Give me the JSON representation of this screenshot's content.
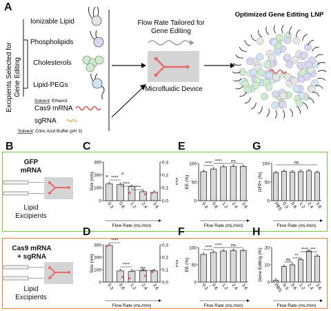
{
  "panels": {
    "A": "A",
    "B": "B",
    "C": "C",
    "D": "D",
    "E": "E",
    "F": "F",
    "G": "G",
    "H": "H"
  },
  "sectionA": {
    "side_label_1": "Excipients Selected for",
    "side_label_2": "Gene Editing",
    "excipients": [
      "Ionizable Lipid",
      "Phospholipids",
      "Cholesterols",
      "Lipid-PEGs"
    ],
    "solvent_ethanol_prefix": "Solvent",
    "solvent_ethanol": ": Ethanol",
    "rna": [
      "Cas9 mRNA",
      "sgRNA"
    ],
    "solvent_buffer_prefix": "Solvent",
    "solvent_buffer": ": Citric Acid Buffer (pH 3)",
    "flow_title_1": "Flow Rate Tailored for",
    "flow_title_2": "Gene Editing",
    "device_label": "Microfluidic Device",
    "lnp_title": "Optimized Gene Editing LNP"
  },
  "colors": {
    "green_border": "#7ac143",
    "orange_border": "#e8803a",
    "bar_fill": "#d9d9d9",
    "pdi_points": "#e8556d",
    "device_fill": "#d4d4d4",
    "channel": "#e86a6a"
  },
  "rowB": {
    "title_1": "GFP",
    "title_2": "mRNA",
    "sub_1": "Lipid",
    "sub_2": "Excipients"
  },
  "rowD": {
    "title_1": "Cas9 mRNA",
    "title_2": "+ sgRNA",
    "sub_1": "Lipid",
    "sub_2": "Excipients"
  },
  "chart_data": [
    {
      "panel": "C",
      "type": "bar",
      "categories": [
        "0.3",
        "0.6",
        "1.2",
        "2.4",
        "3.6"
      ],
      "series": [
        {
          "name": "Size (nm)",
          "values": [
            130,
            125,
            110,
            70,
            65
          ],
          "axis": "left"
        },
        {
          "name": "PDI",
          "type": "scatter",
          "values": [
            0.19,
            0.21,
            0.06,
            0.05,
            0.06
          ],
          "axis": "right"
        }
      ],
      "ylabel": "Size (nm)",
      "y2label": "PDI",
      "xlabel": "Flow Rate (mL/min)",
      "ylim": [
        0,
        300
      ],
      "y2lim": [
        0,
        0.3
      ],
      "yticks": [
        "0",
        "100",
        "200",
        "300"
      ],
      "y2ticks": [
        "0.0",
        "0.1",
        "0.2",
        "0.3"
      ],
      "annotations": [
        "****",
        "****",
        "****"
      ]
    },
    {
      "panel": "D",
      "type": "bar",
      "categories": [
        "0.3",
        "0.6",
        "1.2",
        "2.4",
        "3.6"
      ],
      "series": [
        {
          "name": "Size (nm)",
          "values": [
            295,
            90,
            85,
            90,
            90
          ],
          "axis": "left"
        },
        {
          "name": "PDI",
          "type": "scatter",
          "values": [
            0.29,
            0.04,
            0.03,
            0.05,
            0.08
          ],
          "axis": "right"
        }
      ],
      "ylabel": "Size (nm)",
      "y2label": "PDI",
      "xlabel": "Flow Rate (mL/min)",
      "ylim": [
        0,
        300
      ],
      "y2lim": [
        0,
        0.3
      ],
      "yticks": [
        "0",
        "100",
        "200",
        "300"
      ],
      "y2ticks": [
        "0.0",
        "0.1",
        "0.2",
        "0.3"
      ],
      "annotations": [
        "****",
        "****",
        "ns"
      ]
    },
    {
      "panel": "E",
      "type": "bar",
      "categories": [
        "0.3",
        "0.6",
        "1.2",
        "2.4",
        "3.6"
      ],
      "values": [
        78,
        85,
        91,
        92,
        92
      ],
      "ylabel": "EE (%)",
      "xlabel": "Flow Rate (mL/min)",
      "ylim": [
        0,
        100
      ],
      "yticks": [
        "0",
        "50",
        "100"
      ],
      "annotations": [
        "****",
        "****",
        "ns"
      ]
    },
    {
      "panel": "F",
      "type": "bar",
      "categories": [
        "0.3",
        "0.6",
        "1.2",
        "2.4",
        "3.6"
      ],
      "values": [
        80,
        86,
        90,
        91,
        91
      ],
      "ylabel": "EE (%)",
      "xlabel": "Flow Rate (mL/min)",
      "ylim": [
        0,
        100
      ],
      "yticks": [
        "0",
        "50",
        "100"
      ],
      "annotations": [
        "****",
        "****",
        "ns"
      ]
    },
    {
      "panel": "G",
      "type": "bar",
      "categories": [
        "PBS",
        "0.3",
        "0.6",
        "1.2",
        "2.4",
        "3.6"
      ],
      "values": [
        75,
        79,
        77,
        78,
        80,
        76
      ],
      "ylabel": "GFP+ (%)",
      "xlabel": "Flow Rate (mL/min)",
      "ylim": [
        0,
        100
      ],
      "yticks": [
        "0",
        "50",
        "100"
      ],
      "annotations": [
        "ns"
      ]
    },
    {
      "panel": "H",
      "type": "bar",
      "categories": [
        "PBS",
        "0.3",
        "0.6",
        "1.2",
        "2.4",
        "3.6"
      ],
      "values": [
        1,
        9,
        10,
        13,
        18,
        15
      ],
      "ylabel": "Gene Editing (%)",
      "xlabel": "Flow Rate (mL/min)",
      "ylim": [
        0,
        20
      ],
      "yticks": [
        "0",
        "10",
        "20"
      ],
      "annotations": [
        "ns",
        "**",
        "****",
        "***"
      ]
    }
  ]
}
